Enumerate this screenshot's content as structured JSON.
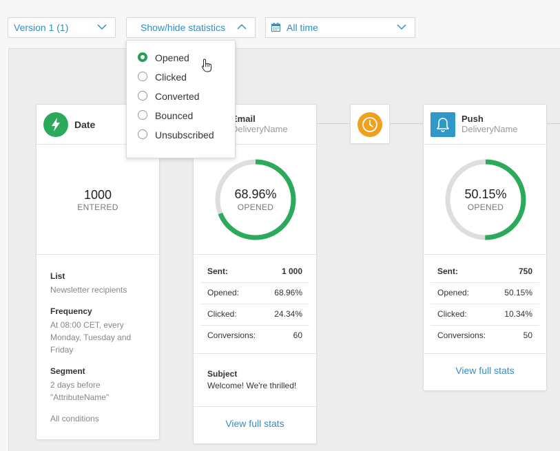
{
  "toolbar": {
    "version_label": "Version 1 (1)",
    "stats_toggle_label": "Show/hide statistics",
    "date_range_label": "All time"
  },
  "stats_menu": {
    "options": [
      {
        "label": "Opened",
        "selected": true
      },
      {
        "label": "Clicked",
        "selected": false
      },
      {
        "label": "Converted",
        "selected": false
      },
      {
        "label": "Bounced",
        "selected": false
      },
      {
        "label": "Unsubscribed",
        "selected": false
      }
    ]
  },
  "trigger_card": {
    "title": "Date",
    "count": "1000",
    "count_label": "ENTERED",
    "list_label": "List",
    "list_value": "Newsletter recipients",
    "frequency_label": "Frequency",
    "frequency_value": "At 08:00 CET, every Monday, Tuesday and Friday",
    "segment_label": "Segment",
    "segment_value": "2 days before \"AttributeName\"",
    "conditions_link": "All conditions"
  },
  "email_card": {
    "title": "Email",
    "subtitle": "DeliveryName",
    "rate": "68.96%",
    "rate_fraction": 0.6896,
    "rate_label": "OPENED",
    "sent_label": "Sent:",
    "sent_value": "1 000",
    "opened_label": "Opened:",
    "opened_value": "68.96%",
    "clicked_label": "Clicked:",
    "clicked_value": "24.34%",
    "conversions_label": "Conversions:",
    "conversions_value": "60",
    "subject_label": "Subject",
    "subject_value": "Welcome! We're thrilled!",
    "view_stats": "View full stats"
  },
  "push_card": {
    "title": "Push",
    "subtitle": "DeliveryName",
    "rate": "50.15%",
    "rate_fraction": 0.5015,
    "rate_label": "OPENED",
    "sent_label": "Sent:",
    "sent_value": "750",
    "opened_label": "Opened:",
    "opened_value": "50.15%",
    "clicked_label": "Clicked:",
    "clicked_value": "10.34%",
    "conversions_label": "Conversions:",
    "conversions_value": "50",
    "view_stats": "View full stats"
  },
  "colors": {
    "accent": "#2f8fc4",
    "success": "#2aaa5a",
    "wait": "#f0a01e",
    "push": "#2f98c7",
    "ring_track": "#dedede"
  }
}
